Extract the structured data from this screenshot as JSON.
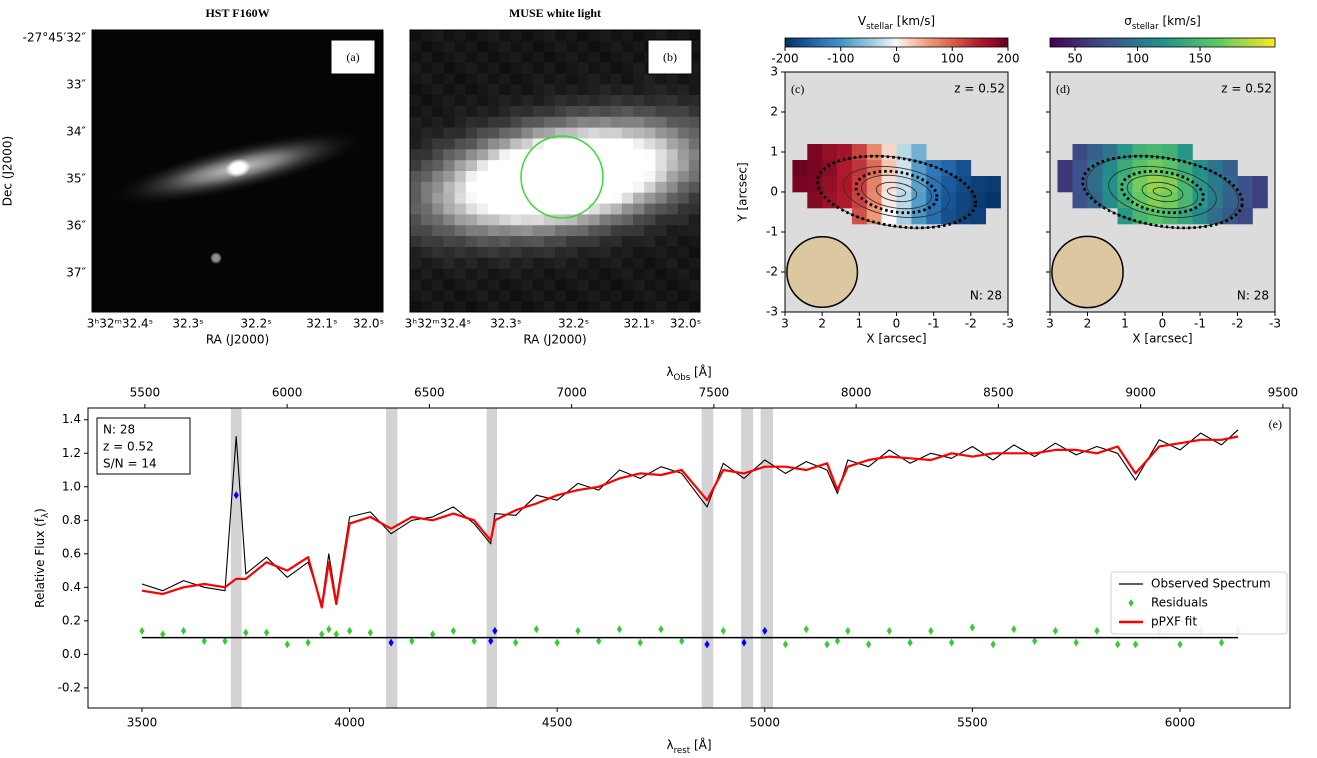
{
  "chart_data": [
    {
      "type": "image",
      "title": "HST F160W",
      "panel_label": "(a)",
      "xlabel": "RA (J2000)",
      "ylabel": "Dec (J2000)",
      "xticks": [
        "3ʰ32ᵐ32.4ˢ",
        "32.3ˢ",
        "32.2ˢ",
        "32.1ˢ",
        "32.0ˢ"
      ],
      "yticks": [
        "-27°45′32″",
        "33″",
        "34″",
        "35″",
        "36″",
        "37″"
      ]
    },
    {
      "type": "image",
      "title": "MUSE white light",
      "panel_label": "(b)",
      "xlabel": "RA (J2000)",
      "xticks": [
        "3ʰ32ᵐ32.4ˢ",
        "32.3ˢ",
        "32.2ˢ",
        "32.1ˢ",
        "32.0ˢ"
      ],
      "aperture_color": "#33dd33"
    },
    {
      "type": "map",
      "colorbar_label": {
        "main": "V",
        "sub": "stellar",
        "rest": " [km/s]"
      },
      "colormap": "RdBu_r",
      "clim": [
        -200,
        200
      ],
      "cticks": [
        -200,
        -100,
        0,
        100,
        200
      ],
      "panel_label": "(c)",
      "annotation": "z = 0.52",
      "count_label": "N: 28",
      "xlabel": "X [arcsec]",
      "ylabel": "Y [arcsec]",
      "xlim": [
        3,
        -3
      ],
      "ylim": [
        -3,
        3
      ],
      "xticks": [
        3,
        2,
        1,
        0,
        -1,
        -2,
        -3
      ],
      "yticks": [
        -3,
        -2,
        -1,
        0,
        1,
        2,
        3
      ],
      "x": [
        2.6,
        2.2,
        1.8,
        1.4,
        1.0,
        0.6,
        0.2,
        -0.2,
        -0.6,
        -1.0,
        -1.4,
        -1.8,
        -2.2,
        -2.6
      ],
      "y": [
        1.0,
        0.6,
        0.2,
        -0.2,
        -0.6
      ],
      "values": [
        [
          null,
          185,
          170,
          160,
          120,
          70,
          20,
          -30,
          -70,
          null,
          null,
          null,
          null,
          null
        ],
        [
          195,
          190,
          175,
          150,
          130,
          90,
          30,
          -20,
          -90,
          -130,
          -150,
          -170,
          null,
          null
        ],
        [
          190,
          185,
          170,
          155,
          125,
          75,
          15,
          -25,
          -85,
          -135,
          -160,
          -175,
          -185,
          -190
        ],
        [
          null,
          180,
          165,
          150,
          120,
          70,
          10,
          -30,
          -90,
          -140,
          -165,
          -180,
          -190,
          -195
        ],
        [
          null,
          null,
          null,
          null,
          110,
          60,
          0,
          -40,
          -95,
          -140,
          -170,
          -180,
          -185,
          null
        ]
      ]
    },
    {
      "type": "map",
      "colorbar_label": {
        "main": "σ",
        "sub": "stellar",
        "rest": " [km/s]"
      },
      "colormap": "viridis",
      "clim": [
        30,
        210
      ],
      "cticks": [
        50,
        100,
        150
      ],
      "panel_label": "(d)",
      "annotation": "z = 0.52",
      "count_label": "N: 28",
      "xlabel": "X [arcsec]",
      "xlim": [
        3,
        -3
      ],
      "ylim": [
        -3,
        3
      ],
      "xticks": [
        3,
        2,
        1,
        0,
        -1,
        -2,
        -3
      ],
      "x": [
        2.6,
        2.2,
        1.8,
        1.4,
        1.0,
        0.6,
        0.2,
        -0.2,
        -0.6,
        -1.0,
        -1.4,
        -1.8,
        -2.2,
        -2.6
      ],
      "y": [
        1.0,
        0.6,
        0.2,
        -0.2,
        -0.6
      ],
      "values": [
        [
          null,
          70,
          85,
          100,
          125,
          145,
          150,
          145,
          125,
          null,
          null,
          null,
          null,
          null
        ],
        [
          60,
          75,
          95,
          115,
          140,
          160,
          170,
          160,
          140,
          120,
          100,
          85,
          null,
          null
        ],
        [
          60,
          75,
          95,
          120,
          145,
          170,
          180,
          175,
          150,
          125,
          105,
          90,
          75,
          65
        ],
        [
          null,
          75,
          90,
          115,
          140,
          165,
          175,
          170,
          150,
          125,
          105,
          85,
          75,
          65
        ],
        [
          null,
          null,
          null,
          null,
          125,
          150,
          160,
          150,
          135,
          115,
          95,
          80,
          70,
          null
        ]
      ]
    },
    {
      "type": "line",
      "panel_label": "(e)",
      "xlabel": {
        "main": "λ",
        "sub": "rest",
        "rest": " [Å]"
      },
      "x2label": {
        "main": "λ",
        "sub": "Obs",
        "rest": " [Å]"
      },
      "ylabel": {
        "main": "Relative Flux (f",
        "sub": "λ",
        "rest": ")"
      },
      "info": [
        "N: 28",
        "z = 0.52",
        "S/N = 14"
      ],
      "xlim": [
        3370,
        6265
      ],
      "xticks": [
        3500,
        4000,
        4500,
        5000,
        5500,
        6000
      ],
      "x2lim": [
        5300,
        9525
      ],
      "x2ticks": [
        5500,
        6000,
        6500,
        7000,
        7500,
        8000,
        8500,
        9000,
        9500
      ],
      "ylim": [
        -0.32,
        1.47
      ],
      "yticks": [
        -0.2,
        {
          "value": 0,
          "label": "0.0"
        },
        0.2,
        0.4,
        0.6,
        0.8,
        {
          "value": 1,
          "label": "1.0"
        },
        1.2,
        1.4
      ],
      "x": [
        3500,
        3550,
        3600,
        3650,
        3700,
        3727,
        3750,
        3800,
        3850,
        3900,
        3933,
        3950,
        3968,
        4000,
        4050,
        4100,
        4150,
        4200,
        4250,
        4300,
        4340,
        4350,
        4400,
        4450,
        4500,
        4550,
        4600,
        4650,
        4700,
        4750,
        4800,
        4861,
        4900,
        4950,
        5000,
        5050,
        5100,
        5150,
        5175,
        5200,
        5250,
        5300,
        5350,
        5400,
        5450,
        5500,
        5550,
        5600,
        5650,
        5700,
        5750,
        5800,
        5850,
        5893,
        5950,
        6000,
        6050,
        6100,
        6140
      ],
      "series": [
        {
          "name": "Observed Spectrum",
          "color": "#000000",
          "values": [
            0.42,
            0.38,
            0.44,
            0.4,
            0.38,
            1.3,
            0.48,
            0.58,
            0.46,
            0.55,
            0.3,
            0.6,
            0.32,
            0.82,
            0.85,
            0.72,
            0.8,
            0.82,
            0.88,
            0.78,
            0.66,
            0.84,
            0.83,
            0.95,
            0.92,
            1.02,
            0.98,
            1.1,
            1.05,
            1.12,
            1.08,
            0.88,
            1.14,
            1.05,
            1.16,
            1.08,
            1.15,
            1.1,
            0.96,
            1.16,
            1.12,
            1.22,
            1.14,
            1.2,
            1.17,
            1.24,
            1.16,
            1.25,
            1.18,
            1.26,
            1.19,
            1.24,
            1.2,
            1.04,
            1.28,
            1.22,
            1.32,
            1.25,
            1.34
          ]
        },
        {
          "name": "Residuals",
          "color": "#32cd32",
          "marker": "diamond",
          "values": [
            0.14,
            0.12,
            0.14,
            0.08,
            0.08,
            0.95,
            0.13,
            0.13,
            0.06,
            0.07,
            0.12,
            0.15,
            0.12,
            0.14,
            0.13,
            0.07,
            0.08,
            0.12,
            0.14,
            0.08,
            0.08,
            0.14,
            0.07,
            0.15,
            0.07,
            0.14,
            0.08,
            0.15,
            0.07,
            0.15,
            0.08,
            0.06,
            0.14,
            0.07,
            0.14,
            0.06,
            0.15,
            0.06,
            0.08,
            0.14,
            0.06,
            0.14,
            0.07,
            0.14,
            0.07,
            0.16,
            0.06,
            0.15,
            0.08,
            0.14,
            0.07,
            0.14,
            0.06,
            0.06,
            0.14,
            0.06,
            0.14,
            0.07,
            0.14
          ]
        },
        {
          "name": "pPXF fit",
          "color": "#ff0000",
          "values": [
            0.38,
            0.36,
            0.4,
            0.42,
            0.4,
            0.45,
            0.45,
            0.55,
            0.5,
            0.58,
            0.28,
            0.55,
            0.3,
            0.78,
            0.82,
            0.75,
            0.82,
            0.8,
            0.84,
            0.8,
            0.68,
            0.8,
            0.86,
            0.9,
            0.95,
            0.98,
            1.0,
            1.05,
            1.08,
            1.07,
            1.1,
            0.92,
            1.1,
            1.08,
            1.12,
            1.12,
            1.1,
            1.14,
            0.98,
            1.12,
            1.16,
            1.18,
            1.17,
            1.16,
            1.2,
            1.18,
            1.2,
            1.2,
            1.2,
            1.22,
            1.22,
            1.2,
            1.24,
            1.08,
            1.24,
            1.26,
            1.28,
            1.28,
            1.3
          ]
        }
      ],
      "residual_baseline": 0.1,
      "masked_regions": [
        [
          3714,
          3740
        ],
        [
          4088,
          4115
        ],
        [
          4330,
          4355
        ],
        [
          4848,
          4876
        ],
        [
          4943,
          4972
        ],
        [
          4990,
          5020
        ]
      ],
      "masked_color": "#0000ff",
      "band_color": "#d3d3d3",
      "legend": "center right"
    }
  ]
}
